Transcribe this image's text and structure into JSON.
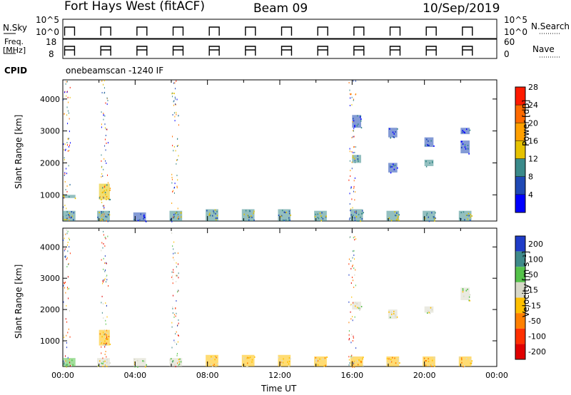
{
  "header": {
    "station": "Fort Hays West (fitACF)",
    "beam": "Beam 09",
    "date": "10/Sep/2019"
  },
  "top_panels": {
    "nsky_label": "N.Sky",
    "nsky_ticks": [
      "10^5",
      "10^0"
    ],
    "nsearch_label": "N.Search",
    "nsearch_ticks": [
      "10^5",
      "10^0"
    ],
    "freq_label_1": "Freq.",
    "freq_label_2": "[MHz]",
    "freq_ticks": [
      "18",
      "8"
    ],
    "nave_label": "Nave",
    "nave_ticks": [
      "60",
      "0"
    ],
    "cpid_label": "CPID",
    "cpid_value": "onebeamscan -1240 IF"
  },
  "chart_data": [
    {
      "type": "heatmap",
      "name": "power",
      "ylabel": "Slant Range [km]",
      "xlabel": "Time UT",
      "yticks": [
        "1000",
        "2000",
        "3000",
        "4000"
      ],
      "ylim": [
        180,
        4600
      ],
      "xlim": [
        0,
        24
      ],
      "colorbar": {
        "label": "Power [dB]",
        "ticks": [
          "4",
          "8",
          "12",
          "16",
          "20",
          "24",
          "28"
        ],
        "colors": [
          "#0000ff",
          "#1f49b5",
          "#3a8a8a",
          "#e6c200",
          "#ffa000",
          "#ff6a00",
          "#ff1a00"
        ]
      },
      "blocks": [
        {
          "t0": 0.0,
          "t1": 0.7,
          "r0": 180,
          "r1": 500,
          "level": 2
        },
        {
          "t0": 0.0,
          "t1": 0.7,
          "r0": 900,
          "r1": 1000,
          "level": 2
        },
        {
          "t0": 1.9,
          "t1": 2.6,
          "r0": 180,
          "r1": 500,
          "level": 2
        },
        {
          "t0": 2.0,
          "t1": 2.6,
          "r0": 850,
          "r1": 1350,
          "level": 3
        },
        {
          "t0": 3.9,
          "t1": 4.6,
          "r0": 180,
          "r1": 450,
          "level": 1
        },
        {
          "t0": 5.9,
          "t1": 6.6,
          "r0": 180,
          "r1": 500,
          "level": 2
        },
        {
          "t0": 7.9,
          "t1": 8.6,
          "r0": 180,
          "r1": 550,
          "level": 2
        },
        {
          "t0": 9.9,
          "t1": 10.6,
          "r0": 180,
          "r1": 550,
          "level": 2
        },
        {
          "t0": 11.9,
          "t1": 12.6,
          "r0": 180,
          "r1": 550,
          "level": 2
        },
        {
          "t0": 13.9,
          "t1": 14.6,
          "r0": 180,
          "r1": 500,
          "level": 2
        },
        {
          "t0": 15.9,
          "t1": 16.6,
          "r0": 180,
          "r1": 550,
          "level": 2
        },
        {
          "t0": 16.0,
          "t1": 16.5,
          "r0": 2000,
          "r1": 2250,
          "level": 2
        },
        {
          "t0": 16.0,
          "t1": 16.5,
          "r0": 3100,
          "r1": 3500,
          "level": 1
        },
        {
          "t0": 17.9,
          "t1": 18.6,
          "r0": 180,
          "r1": 500,
          "level": 2
        },
        {
          "t0": 18.0,
          "t1": 18.5,
          "r0": 1700,
          "r1": 2000,
          "level": 1
        },
        {
          "t0": 18.0,
          "t1": 18.5,
          "r0": 2800,
          "r1": 3100,
          "level": 1
        },
        {
          "t0": 19.9,
          "t1": 20.6,
          "r0": 180,
          "r1": 500,
          "level": 2
        },
        {
          "t0": 20.0,
          "t1": 20.5,
          "r0": 1900,
          "r1": 2100,
          "level": 2
        },
        {
          "t0": 20.0,
          "t1": 20.5,
          "r0": 2500,
          "r1": 2800,
          "level": 1
        },
        {
          "t0": 21.9,
          "t1": 22.6,
          "r0": 180,
          "r1": 500,
          "level": 2
        },
        {
          "t0": 22.0,
          "t1": 22.5,
          "r0": 2300,
          "r1": 2700,
          "level": 1
        },
        {
          "t0": 22.0,
          "t1": 22.5,
          "r0": 2900,
          "r1": 3100,
          "level": 1
        }
      ]
    },
    {
      "type": "heatmap",
      "name": "velocity",
      "ylabel": "Slant Range [km]",
      "xlabel": "Time UT",
      "yticks": [
        "1000",
        "2000",
        "3000",
        "4000"
      ],
      "ylim": [
        180,
        4600
      ],
      "xlim": [
        0,
        24
      ],
      "colorbar": {
        "label": "Velocity [m s⁻¹]",
        "ticks": [
          "200",
          "100",
          "50",
          "15",
          "-15",
          "-50",
          "-100",
          "-200"
        ],
        "colors": [
          "#1f3cc8",
          "#3f8a8a",
          "#55c24a",
          "#d8d8c8",
          "#ffc000",
          "#ff8000",
          "#ff3000",
          "#e00000"
        ]
      },
      "blocks": [
        {
          "t0": 0.0,
          "t1": 0.7,
          "r0": 180,
          "r1": 450,
          "level": 2
        },
        {
          "t0": 2.0,
          "t1": 2.6,
          "r0": 850,
          "r1": 1350,
          "level": 4
        },
        {
          "t0": 1.9,
          "t1": 2.6,
          "r0": 180,
          "r1": 450,
          "level": 3
        },
        {
          "t0": 3.9,
          "t1": 4.6,
          "r0": 180,
          "r1": 450,
          "level": 3
        },
        {
          "t0": 5.9,
          "t1": 6.6,
          "r0": 180,
          "r1": 450,
          "level": 3
        },
        {
          "t0": 7.9,
          "t1": 8.6,
          "r0": 180,
          "r1": 550,
          "level": 4
        },
        {
          "t0": 9.9,
          "t1": 10.6,
          "r0": 180,
          "r1": 550,
          "level": 4
        },
        {
          "t0": 11.9,
          "t1": 12.6,
          "r0": 180,
          "r1": 550,
          "level": 4
        },
        {
          "t0": 13.9,
          "t1": 14.6,
          "r0": 180,
          "r1": 500,
          "level": 4
        },
        {
          "t0": 15.9,
          "t1": 16.6,
          "r0": 180,
          "r1": 500,
          "level": 4
        },
        {
          "t0": 16.0,
          "t1": 16.5,
          "r0": 2000,
          "r1": 2250,
          "level": 3
        },
        {
          "t0": 17.9,
          "t1": 18.6,
          "r0": 180,
          "r1": 500,
          "level": 4
        },
        {
          "t0": 18.0,
          "t1": 18.5,
          "r0": 1700,
          "r1": 2000,
          "level": 3
        },
        {
          "t0": 19.9,
          "t1": 20.6,
          "r0": 180,
          "r1": 500,
          "level": 4
        },
        {
          "t0": 20.0,
          "t1": 20.5,
          "r0": 1900,
          "r1": 2100,
          "level": 3
        },
        {
          "t0": 21.9,
          "t1": 22.6,
          "r0": 180,
          "r1": 500,
          "level": 4
        },
        {
          "t0": 22.0,
          "t1": 22.5,
          "r0": 2300,
          "r1": 2700,
          "level": 3
        }
      ]
    }
  ],
  "time_axis": {
    "label": "Time UT",
    "ticks": [
      "00:00",
      "04:00",
      "08:00",
      "12:00",
      "16:00",
      "20:00",
      "00:00"
    ]
  }
}
